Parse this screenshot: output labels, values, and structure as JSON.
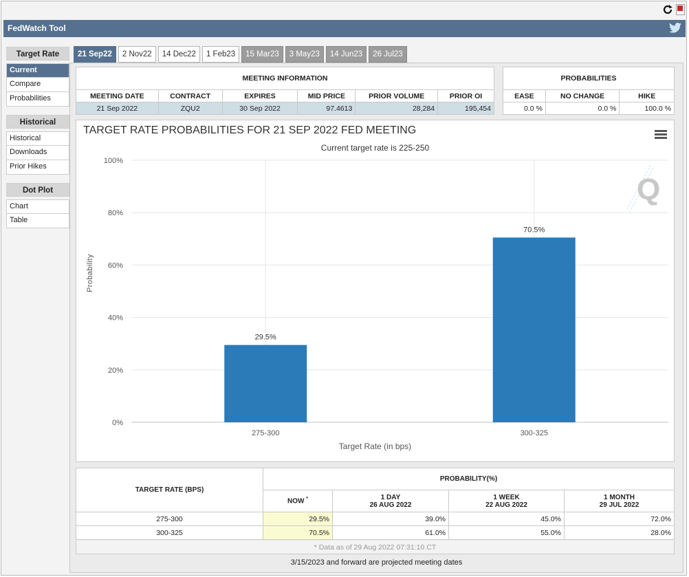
{
  "app": {
    "title": "FedWatch Tool"
  },
  "nav": {
    "sections": [
      {
        "label": "Target Rate",
        "items": [
          "Current",
          "Compare",
          "Probabilities"
        ]
      },
      {
        "label": "Historical",
        "items": [
          "Historical",
          "Downloads",
          "Prior Hikes"
        ]
      },
      {
        "label": "Dot Plot",
        "items": [
          "Chart",
          "Table"
        ]
      }
    ],
    "active": "Current"
  },
  "tabs": [
    {
      "label": "21 Sep22",
      "state": "active"
    },
    {
      "label": "2 Nov22",
      "state": "normal"
    },
    {
      "label": "14 Dec22",
      "state": "normal"
    },
    {
      "label": "1 Feb23",
      "state": "normal"
    },
    {
      "label": "15 Mar23",
      "state": "future"
    },
    {
      "label": "3 May23",
      "state": "future"
    },
    {
      "label": "14 Jun23",
      "state": "future"
    },
    {
      "label": "26 Jul23",
      "state": "future"
    }
  ],
  "meeting_info": {
    "header": "MEETING INFORMATION",
    "columns": [
      "MEETING DATE",
      "CONTRACT",
      "EXPIRES",
      "MID PRICE",
      "PRIOR VOLUME",
      "PRIOR OI"
    ],
    "row": [
      "21 Sep 2022",
      "ZQU2",
      "30 Sep 2022",
      "97.4613",
      "28,284",
      "195,454"
    ]
  },
  "probabilities": {
    "header": "PROBABILITIES",
    "columns": [
      "EASE",
      "NO CHANGE",
      "HIKE"
    ],
    "row": [
      "0.0 %",
      "0.0 %",
      "100.0 %"
    ]
  },
  "chart_data": {
    "type": "bar",
    "title": "TARGET RATE PROBABILITIES FOR 21 SEP 2022 FED MEETING",
    "subtitle": "Current target rate is 225-250",
    "categories": [
      "275-300",
      "300-325"
    ],
    "values": [
      29.5,
      70.5
    ],
    "data_labels": [
      "29.5%",
      "70.5%"
    ],
    "xlabel": "Target Rate (in bps)",
    "ylabel": "Probability",
    "ylim": [
      0,
      100
    ],
    "yticks": [
      "0%",
      "20%",
      "40%",
      "60%",
      "80%",
      "100%"
    ],
    "grid": true,
    "bar_color": "#2b7bb9"
  },
  "bottom_table": {
    "col_target": "TARGET RATE (BPS)",
    "col_prob": "PROBABILITY(%)",
    "sub": [
      {
        "l1": "NOW",
        "l2": ""
      },
      {
        "l1": "1 DAY",
        "l2": "26 AUG 2022"
      },
      {
        "l1": "1 WEEK",
        "l2": "22 AUG 2022"
      },
      {
        "l1": "1 MONTH",
        "l2": "29 JUL 2022"
      }
    ],
    "rows": [
      {
        "rate": "275-300",
        "vals": [
          "29.5%",
          "39.0%",
          "45.0%",
          "72.0%"
        ]
      },
      {
        "rate": "300-325",
        "vals": [
          "70.5%",
          "61.0%",
          "55.0%",
          "28.0%"
        ]
      }
    ],
    "footnote": "* Data as of 29 Aug 2022 07:31:10 CT"
  },
  "projected_note": "3/15/2023 and forward are projected meeting dates",
  "colors": {
    "brand": "#56718f",
    "bar": "#2b7bb9",
    "now_highlight": "#fbfbd2"
  }
}
